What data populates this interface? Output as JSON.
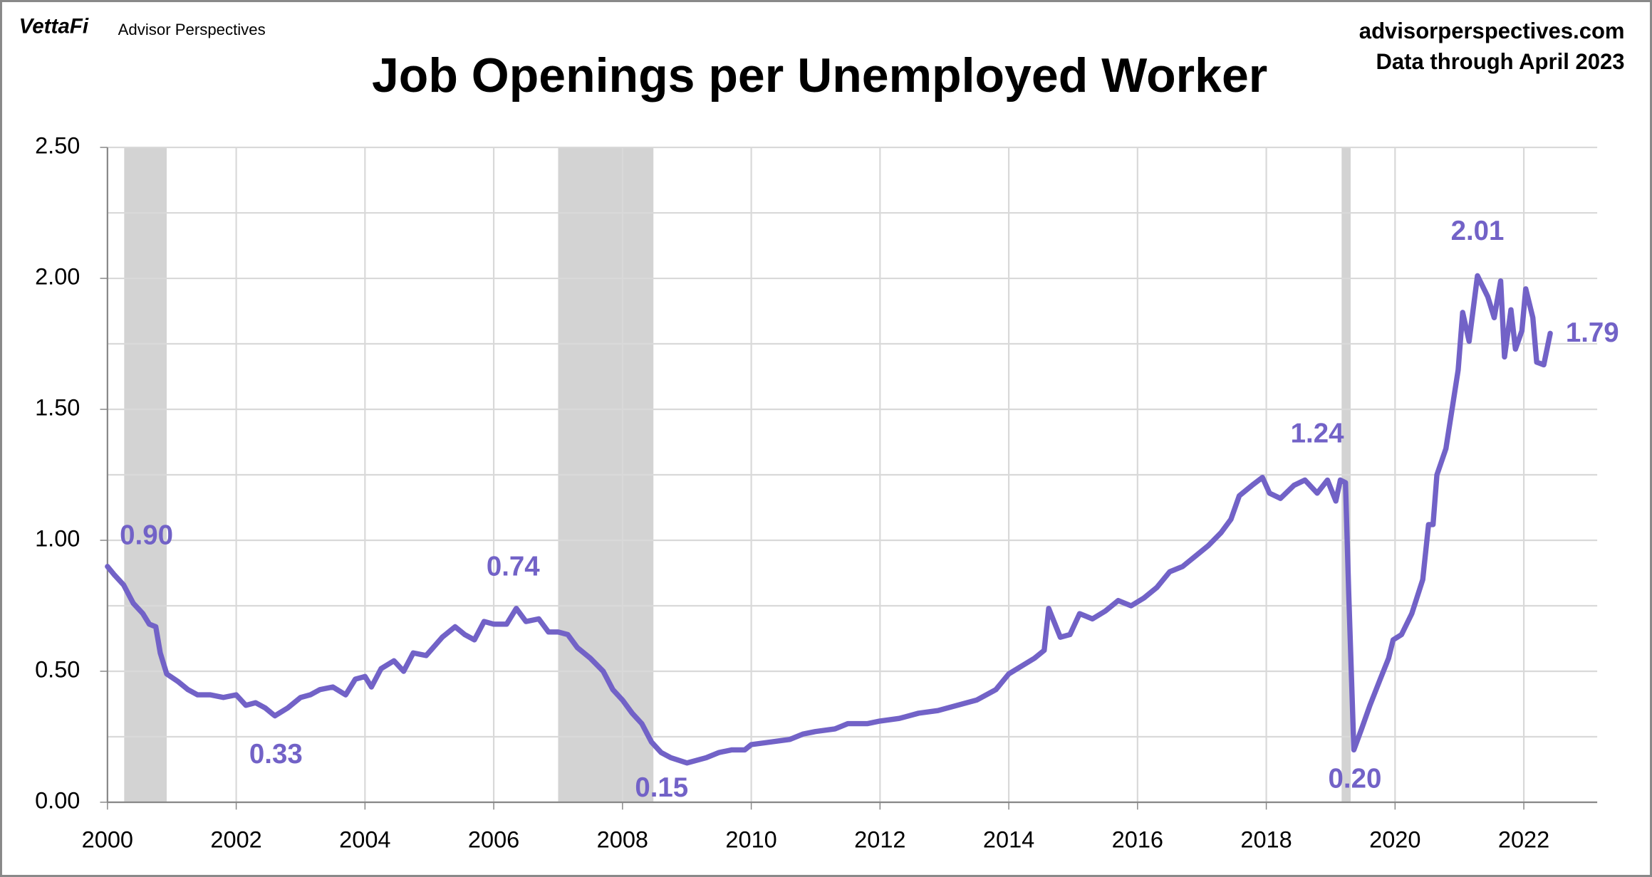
{
  "brand": "VettaFi",
  "publisher": "Advisor Perspectives",
  "website": "advisorperspectives.com",
  "note": "Data through April 2023",
  "chart_data": {
    "type": "line",
    "title": "Job Openings per Unemployed Worker",
    "x": [
      2000.0,
      2000.1,
      2000.25,
      2000.4,
      2000.55,
      2000.65,
      2000.75,
      2000.82,
      2000.92,
      2001.1,
      2001.25,
      2001.4,
      2001.6,
      2001.8,
      2002.0,
      2002.15,
      2002.3,
      2002.45,
      2002.6,
      2002.8,
      2003.0,
      2003.15,
      2003.3,
      2003.5,
      2003.7,
      2003.85,
      2004.0,
      2004.1,
      2004.25,
      2004.45,
      2004.6,
      2004.75,
      2004.95,
      2005.2,
      2005.4,
      2005.55,
      2005.7,
      2005.85,
      2006.0,
      2006.2,
      2006.35,
      2006.5,
      2006.7,
      2006.85,
      2007.0,
      2007.15,
      2007.3,
      2007.5,
      2007.7,
      2007.85,
      2008.0,
      2008.15,
      2008.3,
      2008.45,
      2008.6,
      2008.75,
      2009.0,
      2009.3,
      2009.5,
      2009.7,
      2009.9,
      2010.0,
      2010.3,
      2010.6,
      2010.8,
      2011.0,
      2011.3,
      2011.5,
      2011.8,
      2012.0,
      2012.3,
      2012.6,
      2012.9,
      2013.2,
      2013.5,
      2013.8,
      2014.0,
      2014.2,
      2014.4,
      2014.55,
      2014.62,
      2014.8,
      2014.95,
      2015.1,
      2015.3,
      2015.5,
      2015.7,
      2015.9,
      2016.1,
      2016.3,
      2016.5,
      2016.7,
      2016.9,
      2017.1,
      2017.3,
      2017.45,
      2017.58,
      2017.78,
      2017.94,
      2018.05,
      2018.22,
      2018.43,
      2018.6,
      2018.79,
      2018.95,
      2019.08,
      2019.15,
      2019.23,
      2019.28,
      2019.36,
      2019.48,
      2019.61,
      2019.77,
      2019.9,
      2019.97,
      2020.1,
      2020.26,
      2020.43,
      2020.52,
      2020.59,
      2020.65,
      2020.79,
      2020.98,
      2021.05,
      2021.15,
      2021.28,
      2021.44,
      2021.54,
      2021.64,
      2021.7,
      2021.8,
      2021.87,
      2021.97,
      2022.03,
      2022.14,
      2022.2,
      2022.31,
      2022.41
    ],
    "series": [
      {
        "name": "Job Openings per Unemployed Worker",
        "color": "#7262c7",
        "values": [
          0.9,
          0.87,
          0.83,
          0.76,
          0.72,
          0.68,
          0.67,
          0.57,
          0.49,
          0.46,
          0.43,
          0.41,
          0.41,
          0.4,
          0.41,
          0.37,
          0.38,
          0.36,
          0.33,
          0.36,
          0.4,
          0.41,
          0.43,
          0.44,
          0.41,
          0.47,
          0.48,
          0.44,
          0.51,
          0.54,
          0.5,
          0.57,
          0.56,
          0.63,
          0.67,
          0.64,
          0.62,
          0.69,
          0.68,
          0.68,
          0.74,
          0.69,
          0.7,
          0.65,
          0.65,
          0.64,
          0.59,
          0.55,
          0.5,
          0.43,
          0.39,
          0.34,
          0.3,
          0.23,
          0.19,
          0.17,
          0.15,
          0.17,
          0.19,
          0.2,
          0.2,
          0.22,
          0.23,
          0.24,
          0.26,
          0.27,
          0.28,
          0.3,
          0.3,
          0.31,
          0.32,
          0.34,
          0.35,
          0.37,
          0.39,
          0.43,
          0.49,
          0.52,
          0.55,
          0.58,
          0.74,
          0.63,
          0.64,
          0.72,
          0.7,
          0.73,
          0.77,
          0.75,
          0.78,
          0.82,
          0.88,
          0.9,
          0.94,
          0.98,
          1.03,
          1.08,
          1.17,
          1.21,
          1.24,
          1.18,
          1.16,
          1.21,
          1.23,
          1.18,
          1.23,
          1.15,
          1.23,
          1.22,
          0.8,
          0.2,
          0.28,
          0.37,
          0.47,
          0.55,
          0.62,
          0.64,
          0.72,
          0.85,
          1.06,
          1.06,
          1.25,
          1.35,
          1.65,
          1.87,
          1.76,
          2.01,
          1.93,
          1.85,
          1.99,
          1.7,
          1.88,
          1.73,
          1.8,
          1.96,
          1.85,
          1.68,
          1.67,
          1.79
        ]
      }
    ],
    "annotations": [
      {
        "label": "0.90",
        "value": 0.9,
        "x": 2000.0
      },
      {
        "label": "0.33",
        "value": 0.33,
        "x": 2002.6
      },
      {
        "label": "0.74",
        "value": 0.74,
        "x": 2006.35
      },
      {
        "label": "0.15",
        "value": 0.15,
        "x": 2009.0
      },
      {
        "label": "1.24",
        "value": 1.24,
        "x": 2017.94
      },
      {
        "label": "0.20",
        "value": 0.2,
        "x": 2019.36
      },
      {
        "label": "2.01",
        "value": 2.01,
        "x": 2021.28
      },
      {
        "label": "1.79",
        "value": 1.79,
        "x": 2022.41
      }
    ],
    "recessions": [
      [
        2000.26,
        2000.92
      ],
      [
        2007.0,
        2008.48
      ],
      [
        2019.17,
        2019.31
      ]
    ],
    "recession_color": "#d3d3d3",
    "xlim": [
      2000,
      2023.14
    ],
    "xticks": [
      2000,
      2002,
      2004,
      2006,
      2008,
      2010,
      2012,
      2014,
      2016,
      2018,
      2020,
      2022
    ],
    "ylim": [
      0,
      2.5
    ],
    "yticks": [
      {
        "value": 0,
        "label": "0.00"
      },
      {
        "value": 0.5,
        "label": "0.50"
      },
      {
        "value": 1,
        "label": "1.00"
      },
      {
        "value": 1.5,
        "label": "1.50"
      },
      {
        "value": 2,
        "label": "2.00"
      },
      {
        "value": 2.5,
        "label": "2.50"
      }
    ],
    "yminor": [
      0.25,
      0.75,
      1.25,
      1.75,
      2.25
    ],
    "grid": true
  }
}
